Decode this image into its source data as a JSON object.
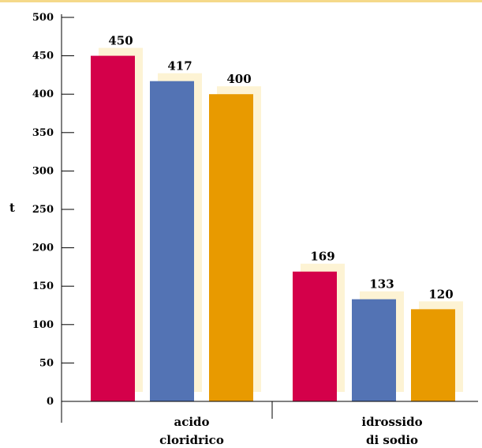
{
  "chart_data": {
    "type": "bar",
    "title": "",
    "xlabel": "",
    "ylabel": "t",
    "ylim": [
      0,
      500
    ],
    "yticks": [
      0,
      50,
      100,
      150,
      200,
      250,
      300,
      350,
      400,
      450,
      500
    ],
    "grid": false,
    "categories": [
      [
        "acido",
        "cloridrico"
      ],
      [
        "idrossido",
        "di sodio"
      ]
    ],
    "series": [
      {
        "color": "#d4004a",
        "values": [
          450,
          169
        ]
      },
      {
        "color": "#5373b4",
        "values": [
          417,
          133
        ]
      },
      {
        "color": "#e89a00",
        "values": [
          400,
          120
        ]
      }
    ],
    "shadow_color": "#fdf3d4",
    "top_rule_color": "#f5d98a"
  }
}
